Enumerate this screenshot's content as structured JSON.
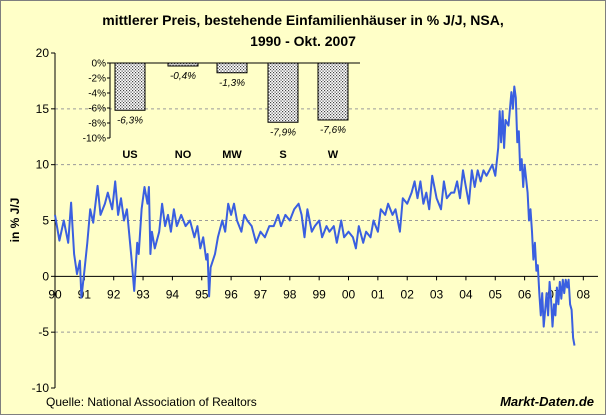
{
  "chart_data": {
    "type": "line",
    "title_line1": "mittlerer Preis, bestehende Einfamilienhäuser in % J/J, NSA,",
    "title_line2": "1990 - Okt. 2007",
    "ylabel": "in % J/J",
    "xlabel": "",
    "ylim": [
      -10,
      20
    ],
    "yticks": [
      20,
      15,
      10,
      5,
      0,
      -5,
      -10
    ],
    "xlim": [
      1990.0,
      2008.5
    ],
    "xtick_labels": [
      "90",
      "91",
      "92",
      "93",
      "94",
      "95",
      "96",
      "97",
      "98",
      "99",
      "00",
      "01",
      "02",
      "03",
      "04",
      "05",
      "06",
      "07",
      "08"
    ],
    "xtick_years": [
      1990,
      1991,
      1992,
      1993,
      1994,
      1995,
      1996,
      1997,
      1998,
      1999,
      2000,
      2001,
      2002,
      2003,
      2004,
      2005,
      2006,
      2007,
      2008
    ],
    "series": [
      {
        "name": "mittlerer Preis J/J",
        "color": "#3a5fe0",
        "keypoints": [
          [
            1990.0,
            5.5
          ],
          [
            1990.15,
            3.2
          ],
          [
            1990.3,
            5.0
          ],
          [
            1990.45,
            3.0
          ],
          [
            1990.55,
            6.6
          ],
          [
            1990.65,
            2.0
          ],
          [
            1990.75,
            0.2
          ],
          [
            1990.85,
            1.4
          ],
          [
            1990.9,
            -1.9
          ],
          [
            1991.0,
            0.5
          ],
          [
            1991.1,
            3.0
          ],
          [
            1991.2,
            6.0
          ],
          [
            1991.3,
            4.8
          ],
          [
            1991.45,
            8.1
          ],
          [
            1991.55,
            5.5
          ],
          [
            1991.7,
            6.5
          ],
          [
            1991.8,
            7.5
          ],
          [
            1991.95,
            6.0
          ],
          [
            1992.05,
            8.5
          ],
          [
            1992.15,
            5.5
          ],
          [
            1992.25,
            7.0
          ],
          [
            1992.35,
            5.0
          ],
          [
            1992.45,
            6.0
          ],
          [
            1992.6,
            1.8
          ],
          [
            1992.7,
            -1.3
          ],
          [
            1992.8,
            3.0
          ],
          [
            1992.85,
            2.0
          ],
          [
            1992.95,
            6.0
          ],
          [
            1993.05,
            8.0
          ],
          [
            1993.15,
            6.5
          ],
          [
            1993.2,
            8.0
          ],
          [
            1993.25,
            2.0
          ],
          [
            1993.3,
            4.0
          ],
          [
            1993.4,
            2.5
          ],
          [
            1993.55,
            4.0
          ],
          [
            1993.65,
            6.5
          ],
          [
            1993.75,
            4.5
          ],
          [
            1993.85,
            5.5
          ],
          [
            1993.95,
            4.0
          ],
          [
            1994.05,
            6.0
          ],
          [
            1994.15,
            4.5
          ],
          [
            1994.3,
            5.5
          ],
          [
            1994.45,
            4.5
          ],
          [
            1994.6,
            5.0
          ],
          [
            1994.75,
            3.5
          ],
          [
            1994.85,
            4.5
          ],
          [
            1994.95,
            2.5
          ],
          [
            1995.05,
            3.5
          ],
          [
            1995.15,
            1.5
          ],
          [
            1995.2,
            2.0
          ],
          [
            1995.25,
            -1.8
          ],
          [
            1995.3,
            0.8
          ],
          [
            1995.45,
            2.0
          ],
          [
            1995.55,
            3.5
          ],
          [
            1995.7,
            5.0
          ],
          [
            1995.8,
            4.0
          ],
          [
            1995.9,
            6.5
          ],
          [
            1996.0,
            5.5
          ],
          [
            1996.1,
            6.5
          ],
          [
            1996.2,
            5.0
          ],
          [
            1996.35,
            4.0
          ],
          [
            1996.45,
            5.5
          ],
          [
            1996.55,
            5.0
          ],
          [
            1996.7,
            4.5
          ],
          [
            1996.85,
            3.0
          ],
          [
            1997.0,
            4.0
          ],
          [
            1997.15,
            3.5
          ],
          [
            1997.3,
            4.5
          ],
          [
            1997.45,
            4.5
          ],
          [
            1997.6,
            5.5
          ],
          [
            1997.7,
            4.5
          ],
          [
            1997.85,
            5.5
          ],
          [
            1998.0,
            5.0
          ],
          [
            1998.15,
            6.0
          ],
          [
            1998.3,
            6.5
          ],
          [
            1998.4,
            5.5
          ],
          [
            1998.5,
            3.5
          ],
          [
            1998.6,
            6.0
          ],
          [
            1998.75,
            4.0
          ],
          [
            1998.85,
            4.5
          ],
          [
            1999.0,
            5.0
          ],
          [
            1999.1,
            3.5
          ],
          [
            1999.25,
            4.5
          ],
          [
            1999.35,
            4.0
          ],
          [
            1999.5,
            4.5
          ],
          [
            1999.6,
            3.0
          ],
          [
            1999.75,
            5.0
          ],
          [
            1999.85,
            3.5
          ],
          [
            2000.0,
            4.0
          ],
          [
            2000.15,
            3.5
          ],
          [
            2000.25,
            2.5
          ],
          [
            2000.35,
            4.5
          ],
          [
            2000.5,
            3.0
          ],
          [
            2000.6,
            4.0
          ],
          [
            2000.75,
            3.5
          ],
          [
            2000.85,
            5.0
          ],
          [
            2001.0,
            4.0
          ],
          [
            2001.1,
            6.0
          ],
          [
            2001.25,
            5.5
          ],
          [
            2001.35,
            6.5
          ],
          [
            2001.5,
            5.5
          ],
          [
            2001.6,
            6.0
          ],
          [
            2001.75,
            4.0
          ],
          [
            2001.85,
            7.0
          ],
          [
            2002.0,
            6.5
          ],
          [
            2002.15,
            7.5
          ],
          [
            2002.25,
            8.5
          ],
          [
            2002.35,
            7.0
          ],
          [
            2002.45,
            8.5
          ],
          [
            2002.55,
            6.5
          ],
          [
            2002.65,
            7.5
          ],
          [
            2002.75,
            6.0
          ],
          [
            2002.85,
            9.0
          ],
          [
            2003.0,
            7.0
          ],
          [
            2003.15,
            6.0
          ],
          [
            2003.25,
            8.5
          ],
          [
            2003.35,
            7.0
          ],
          [
            2003.5,
            7.5
          ],
          [
            2003.6,
            7.5
          ],
          [
            2003.7,
            8.5
          ],
          [
            2003.8,
            7.0
          ],
          [
            2003.9,
            9.5
          ],
          [
            2004.0,
            8.0
          ],
          [
            2004.1,
            6.5
          ],
          [
            2004.2,
            9.5
          ],
          [
            2004.3,
            8.0
          ],
          [
            2004.4,
            9.5
          ],
          [
            2004.5,
            8.5
          ],
          [
            2004.6,
            9.5
          ],
          [
            2004.7,
            9.0
          ],
          [
            2004.8,
            9.5
          ],
          [
            2004.9,
            10.0
          ],
          [
            2005.0,
            9.0
          ],
          [
            2005.1,
            11.5
          ],
          [
            2005.15,
            14.8
          ],
          [
            2005.2,
            12.0
          ],
          [
            2005.25,
            14.8
          ],
          [
            2005.3,
            11.5
          ],
          [
            2005.35,
            14.0
          ],
          [
            2005.45,
            13.5
          ],
          [
            2005.55,
            16.5
          ],
          [
            2005.6,
            15.0
          ],
          [
            2005.65,
            17.0
          ],
          [
            2005.7,
            16.0
          ],
          [
            2005.75,
            12.0
          ],
          [
            2005.8,
            13.0
          ],
          [
            2005.85,
            9.5
          ],
          [
            2005.9,
            10.5
          ],
          [
            2005.95,
            8.0
          ],
          [
            2006.0,
            10.0
          ],
          [
            2006.1,
            7.5
          ],
          [
            2006.15,
            5.0
          ],
          [
            2006.2,
            6.0
          ],
          [
            2006.25,
            4.0
          ],
          [
            2006.3,
            1.5
          ],
          [
            2006.35,
            3.0
          ],
          [
            2006.4,
            0.5
          ],
          [
            2006.45,
            1.0
          ],
          [
            2006.5,
            -1.5
          ],
          [
            2006.55,
            -3.5
          ],
          [
            2006.6,
            -1.5
          ],
          [
            2006.65,
            -4.5
          ],
          [
            2006.7,
            -3.0
          ],
          [
            2006.75,
            -1.5
          ],
          [
            2006.8,
            -3.5
          ],
          [
            2006.85,
            -0.5
          ],
          [
            2006.9,
            -2.0
          ],
          [
            2006.95,
            -4.5
          ],
          [
            2007.0,
            -2.5
          ],
          [
            2007.05,
            -3.5
          ],
          [
            2007.1,
            -1.0
          ],
          [
            2007.15,
            -2.5
          ],
          [
            2007.2,
            -0.5
          ],
          [
            2007.25,
            -2.0
          ],
          [
            2007.3,
            -0.3
          ],
          [
            2007.35,
            -1.5
          ],
          [
            2007.4,
            -0.3
          ],
          [
            2007.45,
            -1.0
          ],
          [
            2007.5,
            -0.3
          ],
          [
            2007.55,
            -2.5
          ],
          [
            2007.6,
            -3.0
          ],
          [
            2007.65,
            -5.5
          ],
          [
            2007.7,
            -6.2
          ]
        ]
      }
    ],
    "gridlines_y": true,
    "inset": {
      "type": "bar",
      "categories": [
        "US",
        "NO",
        "MW",
        "S",
        "W"
      ],
      "values": [
        -6.3,
        -0.4,
        -1.3,
        -7.9,
        -7.6
      ],
      "value_labels": [
        "-6,3%",
        "-0,4%",
        "-1,3%",
        "-7,9%",
        "-7,6%"
      ],
      "ylim": [
        -10,
        0
      ],
      "ytick_labels": [
        "0%",
        "-2%",
        "-4%",
        "-6%",
        "-8%",
        "-10%"
      ],
      "ytick_values": [
        0,
        -2,
        -4,
        -6,
        -8,
        -10
      ]
    }
  },
  "footer": {
    "source": "Quelle: National Association of Realtors",
    "brand": "Markt-Daten.de"
  }
}
